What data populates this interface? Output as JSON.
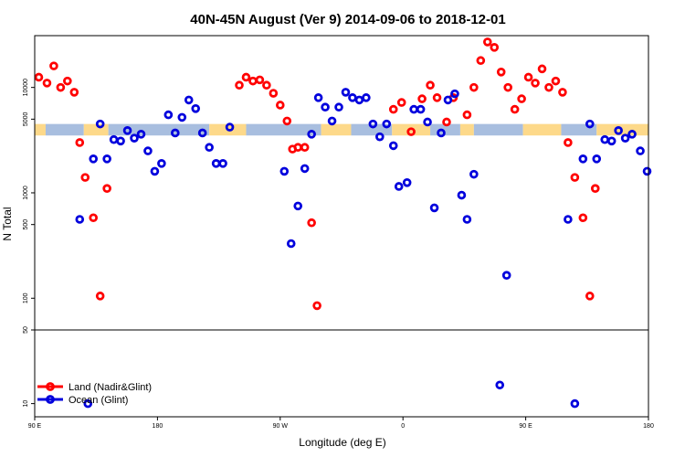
{
  "chart_data": {
    "type": "scatter",
    "title": "40N-45N August (Ver 9)   2014-09-06 to 2018-12-01",
    "xlabel": "Longitude (deg E)",
    "ylabel": "N Total",
    "y_scale": "log",
    "y_ticks": [
      10,
      50,
      100,
      500,
      1000,
      5000,
      10000
    ],
    "y_tick_labels": [
      "10",
      "50",
      "100",
      "500",
      "1000",
      "5000",
      "10000"
    ],
    "x_ticks": [
      0,
      90,
      180,
      270,
      360,
      450
    ],
    "x_tick_labels": [
      "90 E",
      "180",
      "90 W",
      "0",
      "90 E",
      "180"
    ],
    "xlim": [
      0,
      450
    ],
    "ylim": [
      7.5,
      31000
    ],
    "reference_line_y": 50,
    "band": {
      "ymin": 3500,
      "ymax": 4500,
      "colors": [
        "#a8bedf",
        "#fdd98a"
      ]
    },
    "legend": {
      "position": "bottom-left"
    },
    "series": [
      {
        "name": "Land (Nadir&Glint)",
        "color": "#ff0000",
        "points": [
          [
            3,
            12500
          ],
          [
            9,
            11000
          ],
          [
            14,
            16000
          ],
          [
            19,
            10000
          ],
          [
            24,
            11500
          ],
          [
            29,
            9000
          ],
          [
            33,
            3000
          ],
          [
            37,
            1400
          ],
          [
            43,
            580
          ],
          [
            48,
            105
          ],
          [
            53,
            1100
          ],
          [
            150,
            10500
          ],
          [
            155,
            12500
          ],
          [
            160,
            11500
          ],
          [
            165,
            11800
          ],
          [
            170,
            10500
          ],
          [
            175,
            8800
          ],
          [
            180,
            6800
          ],
          [
            185,
            4800
          ],
          [
            189,
            2600
          ],
          [
            193,
            2700
          ],
          [
            198,
            2700
          ],
          [
            203,
            520
          ],
          [
            207,
            85
          ],
          [
            263,
            6200
          ],
          [
            269,
            7200
          ],
          [
            276,
            3800
          ],
          [
            284,
            7800
          ],
          [
            290,
            10500
          ],
          [
            295,
            8000
          ],
          [
            302,
            4700
          ],
          [
            307,
            8000
          ],
          [
            317,
            5500
          ],
          [
            322,
            10000
          ],
          [
            327,
            18000
          ],
          [
            332,
            27000
          ],
          [
            337,
            24000
          ],
          [
            342,
            14000
          ],
          [
            347,
            10000
          ],
          [
            352,
            6200
          ],
          [
            357,
            7800
          ],
          [
            362,
            12500
          ],
          [
            367,
            11000
          ],
          [
            372,
            15000
          ],
          [
            377,
            10000
          ],
          [
            382,
            11500
          ],
          [
            387,
            9000
          ],
          [
            391,
            3000
          ],
          [
            396,
            1400
          ],
          [
            402,
            580
          ],
          [
            407,
            105
          ],
          [
            411,
            1100
          ]
        ]
      },
      {
        "name": "Ocean (Glint)",
        "color": "#0000dd",
        "points": [
          [
            33,
            560
          ],
          [
            39,
            10
          ],
          [
            43,
            2100
          ],
          [
            48,
            4500
          ],
          [
            53,
            2100
          ],
          [
            58,
            3200
          ],
          [
            63,
            3100
          ],
          [
            68,
            3900
          ],
          [
            73,
            3300
          ],
          [
            78,
            3600
          ],
          [
            83,
            2500
          ],
          [
            88,
            1600
          ],
          [
            93,
            1900
          ],
          [
            98,
            5500
          ],
          [
            103,
            3700
          ],
          [
            108,
            5200
          ],
          [
            113,
            7600
          ],
          [
            118,
            6300
          ],
          [
            123,
            3700
          ],
          [
            128,
            2700
          ],
          [
            133,
            1900
          ],
          [
            138,
            1900
          ],
          [
            143,
            4200
          ],
          [
            183,
            1600
          ],
          [
            188,
            330
          ],
          [
            193,
            750
          ],
          [
            198,
            1700
          ],
          [
            203,
            3600
          ],
          [
            208,
            8000
          ],
          [
            213,
            6500
          ],
          [
            218,
            4800
          ],
          [
            223,
            6500
          ],
          [
            228,
            9000
          ],
          [
            233,
            8000
          ],
          [
            238,
            7600
          ],
          [
            243,
            8000
          ],
          [
            248,
            4500
          ],
          [
            253,
            3400
          ],
          [
            258,
            4500
          ],
          [
            263,
            2800
          ],
          [
            267,
            1150
          ],
          [
            273,
            1250
          ],
          [
            278,
            6200
          ],
          [
            283,
            6200
          ],
          [
            288,
            4700
          ],
          [
            293,
            720
          ],
          [
            298,
            3700
          ],
          [
            303,
            7600
          ],
          [
            308,
            8700
          ],
          [
            313,
            950
          ],
          [
            317,
            560
          ],
          [
            322,
            1500
          ],
          [
            341,
            15
          ],
          [
            346,
            165
          ],
          [
            391,
            560
          ],
          [
            396,
            10
          ],
          [
            402,
            2100
          ],
          [
            407,
            4500
          ],
          [
            412,
            2100
          ],
          [
            418,
            3200
          ],
          [
            423,
            3100
          ],
          [
            428,
            3900
          ],
          [
            433,
            3300
          ],
          [
            438,
            3600
          ],
          [
            444,
            2500
          ],
          [
            449,
            1600
          ]
        ]
      }
    ]
  }
}
